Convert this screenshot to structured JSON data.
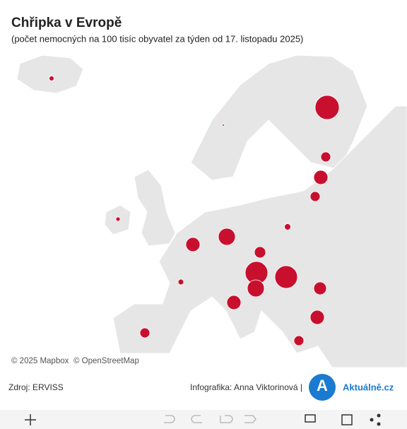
{
  "chart_data": {
    "type": "bubble-map",
    "title": "Chřipka v Evropě",
    "subtitle": "(počet nemocných na 100 tisíc obyvatel za týden od 17. listopadu 2025)",
    "attribution": [
      "© 2025 Mapbox",
      "© OpenStreetMap"
    ],
    "source": "Zdroj: ERVISS",
    "credit": "Infografika: Anna Viktorinová |",
    "logo_letter": "A",
    "logo_text": "Aktuálně.cz",
    "color": "#c8102e",
    "values": [
      12,
      2,
      290,
      49,
      100,
      49,
      9,
      20,
      100,
      144,
      64,
      16,
      256,
      256,
      144,
      81,
      100,
      100,
      49,
      49
    ]
  }
}
